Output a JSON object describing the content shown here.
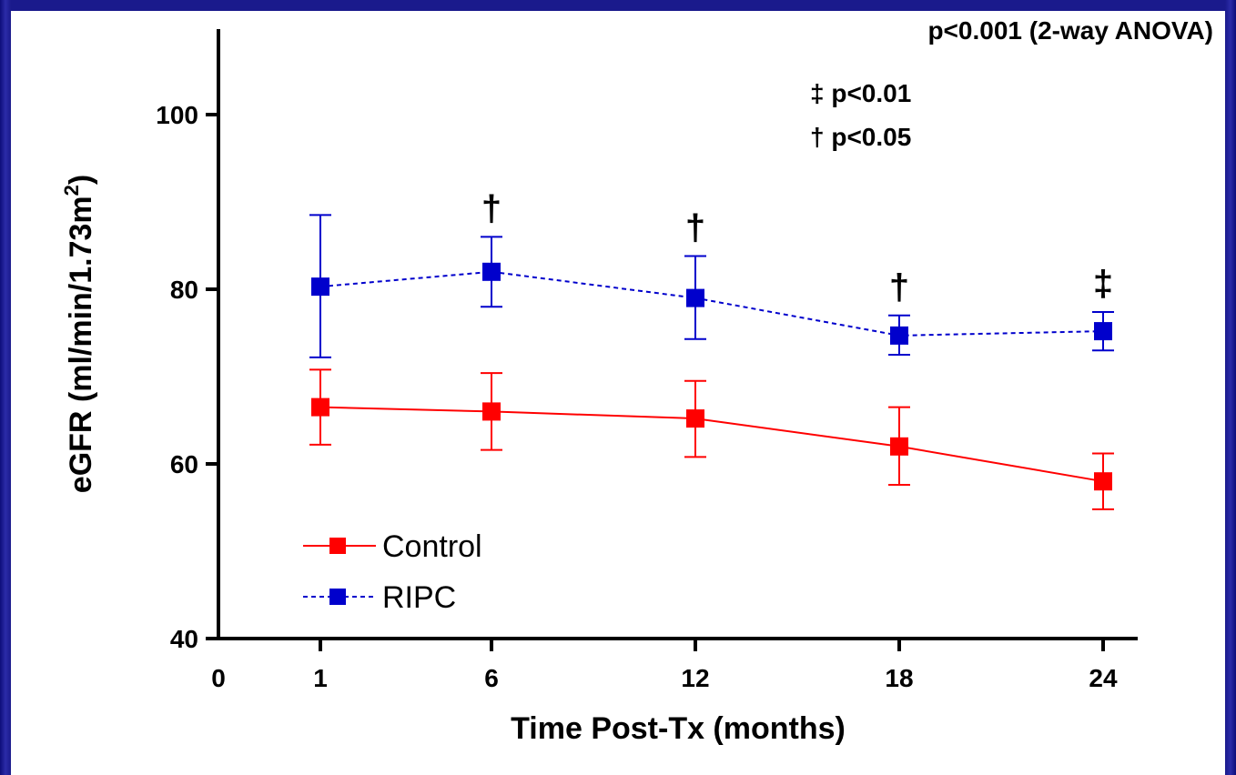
{
  "chart_data": {
    "type": "line",
    "ylabel": "eGFR (ml/min/1.73m",
    "ylabel_sup": "2",
    "ylabel_close": ")",
    "xlabel": "Time Post-Tx (months)",
    "x_tick_labels": [
      "0",
      "1",
      "6",
      "12",
      "18",
      "24"
    ],
    "categories": [
      "1",
      "6",
      "12",
      "18",
      "24"
    ],
    "y_ticks": [
      40,
      60,
      80,
      100
    ],
    "ylim": [
      40,
      110
    ],
    "series": [
      {
        "name": "Control",
        "color": "#ff0000",
        "line_style": "solid",
        "values": [
          66.5,
          66.0,
          65.2,
          62.0,
          58.0
        ],
        "error_upper": [
          70.8,
          70.4,
          69.5,
          66.5,
          61.2
        ],
        "error_lower": [
          62.2,
          61.6,
          60.8,
          57.6,
          54.8
        ]
      },
      {
        "name": "RIPC",
        "color": "#0000cc",
        "line_style": "dashed",
        "values": [
          80.3,
          82.0,
          79.0,
          74.7,
          75.2
        ],
        "error_upper": [
          88.5,
          86.0,
          83.8,
          77.0,
          77.4
        ],
        "error_lower": [
          72.2,
          78.0,
          74.3,
          72.5,
          73.0
        ]
      }
    ],
    "significance_markers": [
      "",
      "†",
      "†",
      "†",
      "‡"
    ],
    "annotations": {
      "overall": "p<0.001 (2-way ANOVA)",
      "double_dagger": "‡ p<0.01",
      "dagger": "† p<0.05"
    },
    "legend_position": "bottom-left",
    "grid": false
  }
}
